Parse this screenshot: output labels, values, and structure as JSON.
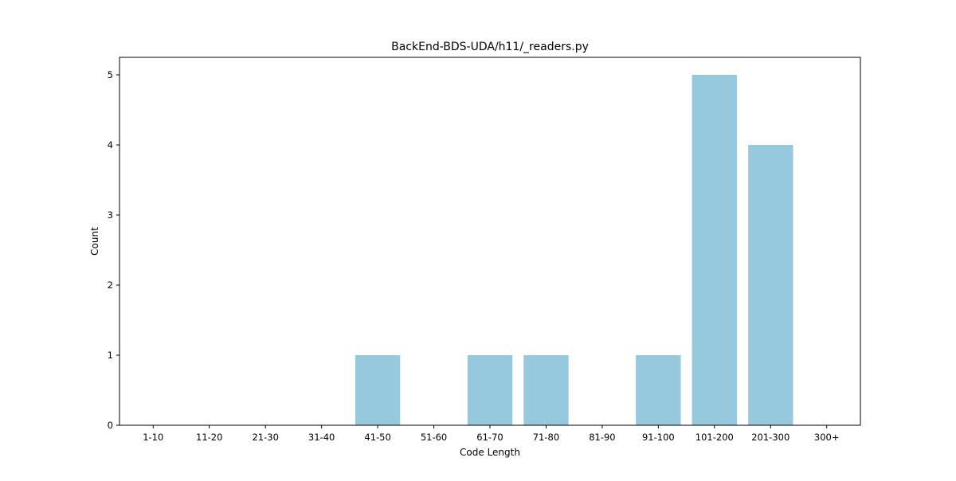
{
  "chart_data": {
    "type": "bar",
    "title": "BackEnd-BDS-UDA/h11/_readers.py",
    "xlabel": "Code Length",
    "ylabel": "Count",
    "categories": [
      "1-10",
      "11-20",
      "21-30",
      "31-40",
      "41-50",
      "51-60",
      "61-70",
      "71-80",
      "81-90",
      "91-100",
      "101-200",
      "201-300",
      "300+"
    ],
    "values": [
      0,
      0,
      0,
      0,
      1,
      0,
      1,
      1,
      0,
      1,
      5,
      4,
      0
    ],
    "ylim": [
      0,
      5.25
    ],
    "yticks": [
      0,
      1,
      2,
      3,
      4,
      5
    ],
    "bar_color": "#96c9dd",
    "grid": false,
    "legend": false
  }
}
